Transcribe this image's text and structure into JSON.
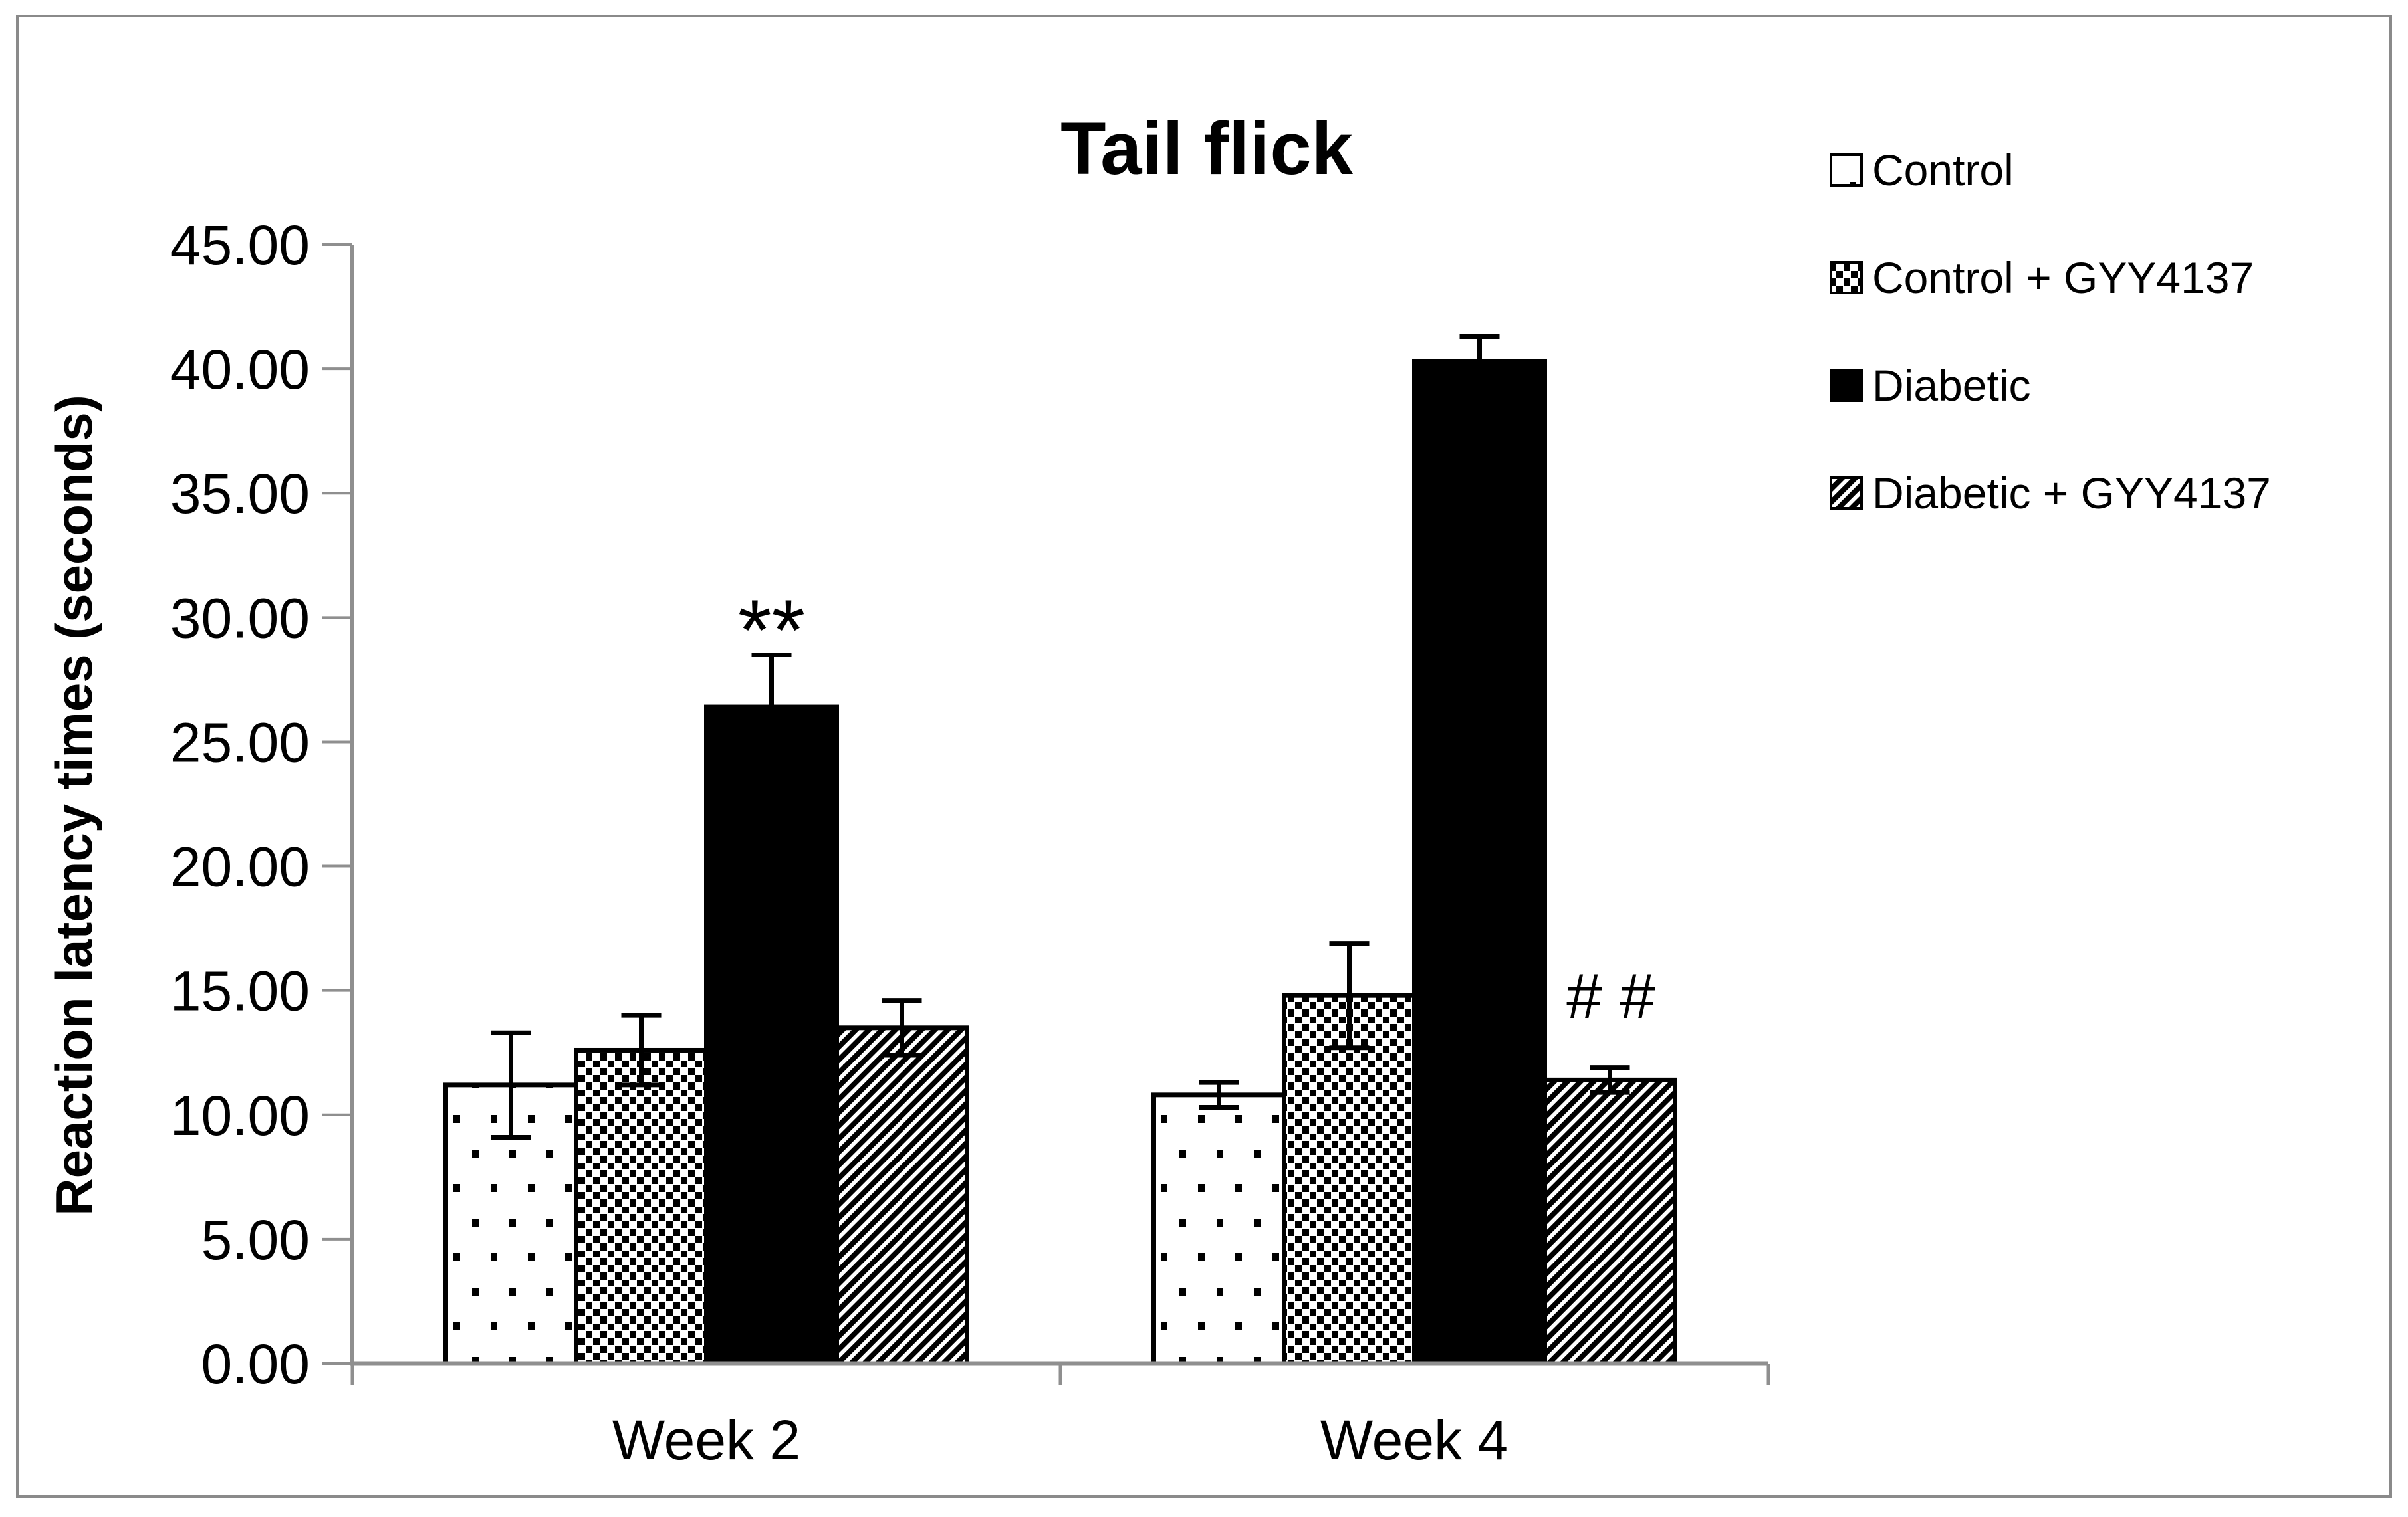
{
  "figure": {
    "background": "#ffffff",
    "border_color": "#8a8a8a",
    "axis_color": "#8f8f8f",
    "bar_outline_color": "#000000",
    "error_bar_color": "#000000",
    "text_color": "#000000"
  },
  "chart_data": {
    "type": "bar",
    "title": "Tail flick",
    "ylabel": "Reaction latency times (seconds)",
    "xlabel": "",
    "categories": [
      "Week 2",
      "Week 4"
    ],
    "ylim": [
      0,
      45
    ],
    "ytick_step": 5,
    "ytick_labels": [
      "0.00",
      "5.00",
      "10.00",
      "15.00",
      "20.00",
      "25.00",
      "30.00",
      "35.00",
      "40.00",
      "45.00"
    ],
    "grid": false,
    "legend_position": "right",
    "series": [
      {
        "name": "Control",
        "pattern": "sparse-dots",
        "values": [
          11.2,
          10.8
        ],
        "errors": [
          2.1,
          0.5
        ]
      },
      {
        "name": "Control + GYY4137",
        "pattern": "dense-dots",
        "values": [
          12.6,
          14.8
        ],
        "errors": [
          1.4,
          2.1
        ]
      },
      {
        "name": "Diabetic",
        "pattern": "solid-black",
        "values": [
          26.4,
          40.3
        ],
        "errors": [
          2.1,
          1.0
        ]
      },
      {
        "name": "Diabetic + GYY4137",
        "pattern": "diagonal-hatch",
        "values": [
          13.5,
          11.4
        ],
        "errors": [
          1.1,
          0.5
        ]
      }
    ],
    "annotations": [
      {
        "text": "**",
        "category": "Week 2",
        "series": "Diabetic",
        "y_value": 28.3,
        "font_size": 130,
        "italic": false
      },
      {
        "text": "# #",
        "category": "Week 4",
        "series": "Diabetic + GYY4137",
        "y_value": 13.9,
        "font_size": 96,
        "italic": true
      }
    ]
  }
}
